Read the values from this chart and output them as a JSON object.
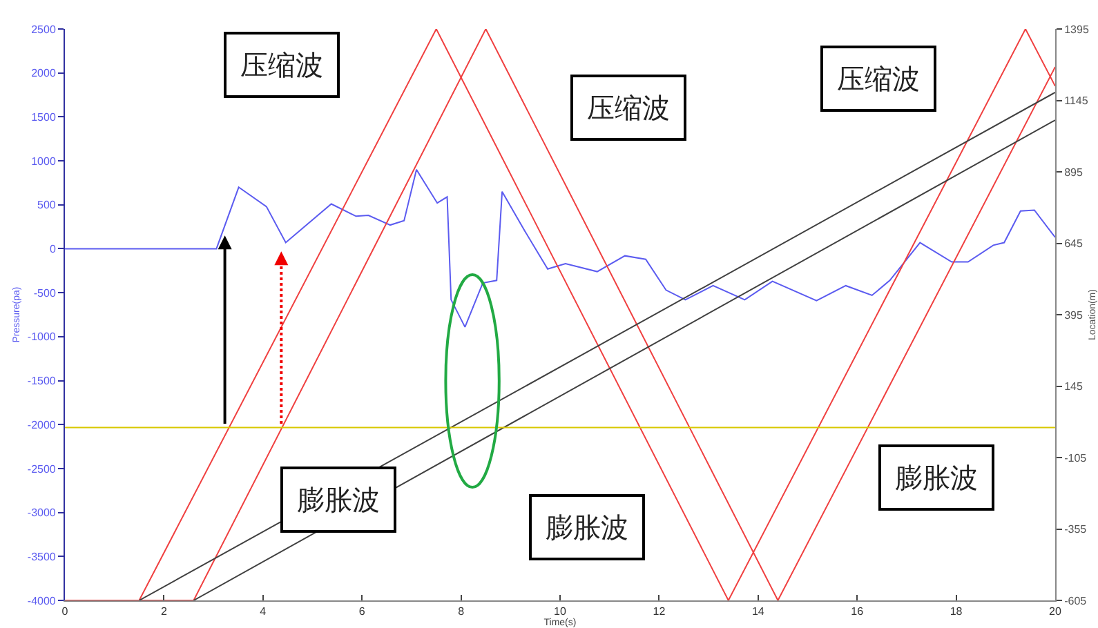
{
  "chart_data": {
    "type": "line",
    "xlabel": "Time(s)",
    "ylabel": "Pressure(pa)",
    "y2label": "Location(m)",
    "xlim": [
      0,
      20
    ],
    "xticks": [
      0,
      2,
      4,
      6,
      8,
      10,
      12,
      14,
      16,
      18,
      20
    ],
    "ylim": [
      -4000,
      2500
    ],
    "yticks": [
      -4000,
      -3500,
      -3000,
      -2500,
      -2000,
      -1500,
      -1000,
      -500,
      0,
      500,
      1000,
      1500,
      2000,
      2500
    ],
    "y2lim": [
      -605,
      1395
    ],
    "y2ticks": [
      -605,
      -355,
      -105,
      145,
      395,
      645,
      895,
      1145,
      1395
    ],
    "grid": false,
    "line_style": "solid",
    "marker": "none",
    "series": [
      {
        "color": "#5b5bf0",
        "x": [
          0,
          3.06,
          3.51,
          4.07,
          4.46,
          5.38,
          5.88,
          6.13,
          6.57,
          6.85,
          7.1,
          7.52,
          7.72,
          7.8,
          8.08,
          8.44,
          8.72,
          8.83,
          9.28,
          9.75,
          10.11,
          10.75,
          11.31,
          11.73,
          12.14,
          12.53,
          13.09,
          13.73,
          14.29,
          15.18,
          15.77,
          16.3,
          16.66,
          17.27,
          17.91,
          18.24,
          18.75,
          18.97,
          19.3,
          19.58,
          20
        ],
        "values": [
          0,
          0,
          700,
          480,
          70,
          510,
          370,
          380,
          270,
          320,
          900,
          520,
          590,
          -580,
          -890,
          -390,
          -360,
          650,
          210,
          -230,
          -170,
          -260,
          -80,
          -120,
          -470,
          -580,
          -420,
          -580,
          -370,
          -590,
          -420,
          -530,
          -360,
          70,
          -150,
          -150,
          40,
          70,
          430,
          440,
          130
        ]
      },
      {
        "color": "#f04040",
        "axis": "y2",
        "x": [
          0,
          1.5,
          7.5,
          13.4,
          19.4,
          20
        ],
        "values": [
          -605,
          -605,
          1395,
          -605,
          1395,
          1195
        ]
      },
      {
        "color": "#f04040",
        "axis": "y2",
        "x": [
          0,
          2.6,
          8.5,
          14.4,
          20
        ],
        "values": [
          -605,
          -605,
          1395,
          -605,
          1262
        ]
      },
      {
        "color": "#404040",
        "axis": "y2",
        "x": [
          1.5,
          20
        ],
        "values": [
          -605,
          1173
        ]
      },
      {
        "color": "#404040",
        "axis": "y2",
        "x": [
          2.6,
          20
        ],
        "values": [
          -605,
          1076
        ]
      }
    ],
    "ref_lines": [
      {
        "axis": "y2",
        "value": 0,
        "color": "#d8c800"
      }
    ],
    "annotations": [
      "压缩波",
      "压缩波",
      "压缩波",
      "膨胀波",
      "膨胀波",
      "膨胀波"
    ]
  }
}
